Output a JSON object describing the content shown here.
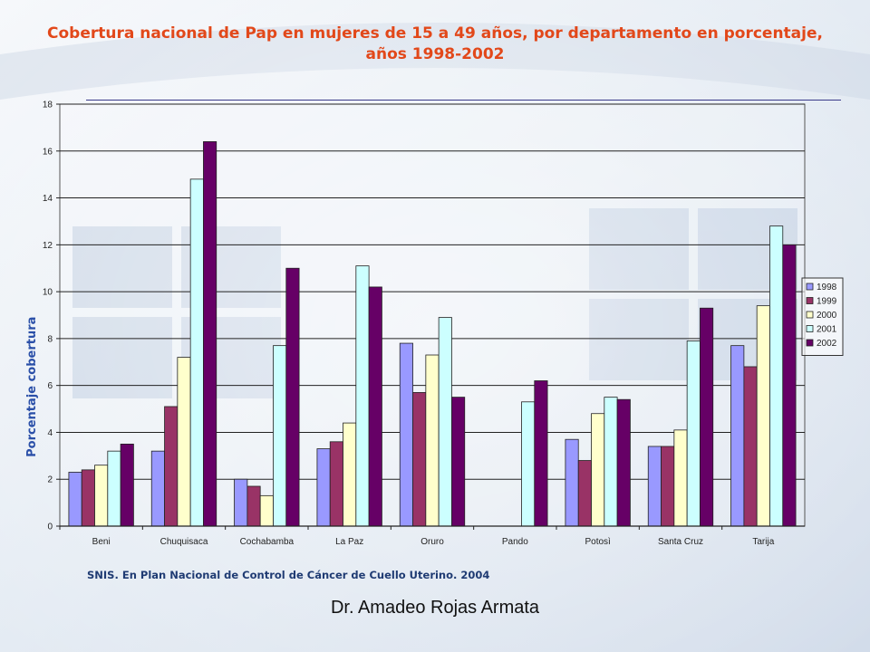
{
  "slide": {
    "author": "Dr. Amadeo Rojas Armata",
    "source_note": "SNIS. En Plan Nacional de Control de Cáncer de Cuello Uterino. 2004"
  },
  "colors": {
    "title": "#e2481a",
    "source_note": "#1f3b73",
    "ylabel": "#2a4fa8"
  },
  "chart_data": {
    "type": "bar",
    "title": "Cobertura nacional de Pap en mujeres de 15 a 49 años, por departamento en porcentaje, años 1998-2002",
    "xlabel": "",
    "ylabel": "Porcentaje cobertura",
    "ylim": [
      0,
      18
    ],
    "yticks": [
      "0",
      "2",
      "4",
      "6",
      "8",
      "10",
      "12",
      "14",
      "16",
      "18"
    ],
    "grid": true,
    "legend_position": "right",
    "categories": [
      "Beni",
      "Chuquisaca",
      "Cochabamba",
      "La Paz",
      "Oruro",
      "Pando",
      "Potosì",
      "Santa Cruz",
      "Tarija"
    ],
    "series": [
      {
        "name": "1998",
        "color": "#9999ff",
        "values": [
          2.3,
          3.2,
          2.0,
          3.3,
          7.8,
          0,
          3.7,
          3.4,
          7.7
        ]
      },
      {
        "name": "1999",
        "color": "#993366",
        "values": [
          2.4,
          5.1,
          1.7,
          3.6,
          5.7,
          0,
          2.8,
          3.4,
          6.8
        ]
      },
      {
        "name": "2000",
        "color": "#ffffcc",
        "values": [
          2.6,
          7.2,
          1.3,
          4.4,
          7.3,
          0,
          4.8,
          4.1,
          9.4
        ]
      },
      {
        "name": "2001",
        "color": "#ccffff",
        "values": [
          3.2,
          14.8,
          7.7,
          11.1,
          8.9,
          5.3,
          5.5,
          7.9,
          12.8
        ]
      },
      {
        "name": "2002",
        "color": "#660066",
        "values": [
          3.5,
          16.4,
          11.0,
          10.2,
          5.5,
          6.2,
          5.4,
          9.3,
          12.0
        ]
      }
    ]
  }
}
